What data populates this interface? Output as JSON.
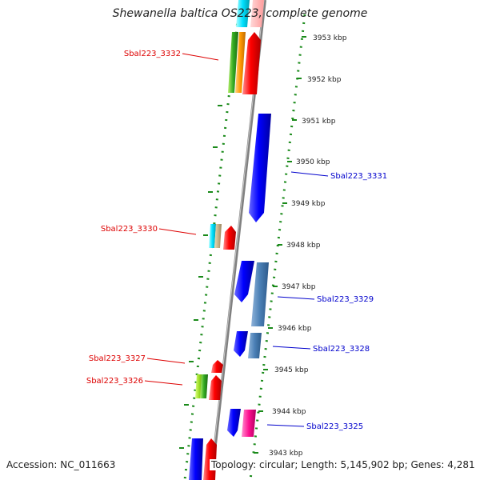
{
  "title": "Shewanella baltica OS223, complete genome",
  "footer": {
    "accession": "Accession: NC_011663",
    "topology": "Topology: circular; Length: 5,145,902 bp; Genes: 4,281"
  },
  "scale_labels": [
    "3953 kbp",
    "3952 kbp",
    "3951 kbp",
    "3950 kbp",
    "3949 kbp",
    "3948 kbp",
    "3947 kbp",
    "3946 kbp",
    "3945 kbp",
    "3944 kbp",
    "3943 kbp"
  ],
  "gene_labels": [
    {
      "text": "Sbal223_3332",
      "color": "#dd0000"
    },
    {
      "text": "Sbal223_3331",
      "color": "#0000cc"
    },
    {
      "text": "Sbal223_3330",
      "color": "#dd0000"
    },
    {
      "text": "Sbal223_3329",
      "color": "#0000cc"
    },
    {
      "text": "Sbal223_3328",
      "color": "#0000cc"
    },
    {
      "text": "Sbal223_3327",
      "color": "#dd0000"
    },
    {
      "text": "Sbal223_3326",
      "color": "#dd0000"
    },
    {
      "text": "Sbal223_3325",
      "color": "#0000cc"
    }
  ],
  "colors": {
    "dots": "#1a8a1a",
    "backbone": "#808080",
    "forward": "#ff0000",
    "reverse": "#0000ff"
  }
}
